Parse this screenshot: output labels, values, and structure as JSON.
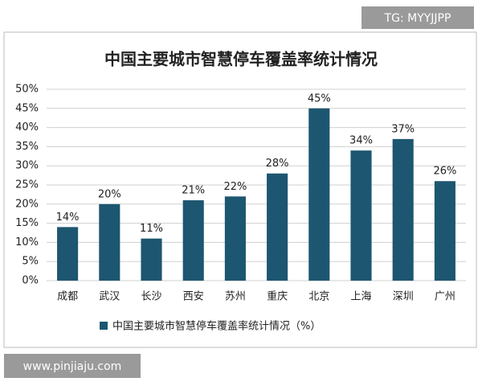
{
  "watermarks": {
    "top_right": "TG: MYYJJPP",
    "bottom_left": "www.pinjiaju.com"
  },
  "chart_data": {
    "type": "bar",
    "title": "中国主要城市智慧停车覆盖率统计情况",
    "categories": [
      "成都",
      "武汉",
      "长沙",
      "西安",
      "苏州",
      "重庆",
      "北京",
      "上海",
      "深圳",
      "广州"
    ],
    "series": [
      {
        "name": "中国主要城市智慧停车覆盖率统计情况（%）",
        "color": "#1d5670",
        "values": [
          14,
          20,
          11,
          21,
          22,
          28,
          45,
          34,
          37,
          26
        ],
        "value_labels": [
          "14%",
          "20%",
          "11%",
          "21%",
          "22%",
          "28%",
          "45%",
          "34%",
          "37%",
          "26%"
        ]
      }
    ],
    "ylim": [
      0,
      50
    ],
    "yticks": [
      {
        "value": 0,
        "label": "0%"
      },
      {
        "value": 5,
        "label": "5%"
      },
      {
        "value": 10,
        "label": "10%"
      },
      {
        "value": 15,
        "label": "15%"
      },
      {
        "value": 20,
        "label": "20%"
      },
      {
        "value": 25,
        "label": "25%"
      },
      {
        "value": 30,
        "label": "30%"
      },
      {
        "value": 35,
        "label": "35%"
      },
      {
        "value": 40,
        "label": "40%"
      },
      {
        "value": 45,
        "label": "45%"
      },
      {
        "value": 50,
        "label": "50%"
      }
    ],
    "grid": true,
    "legend": "bottom"
  }
}
